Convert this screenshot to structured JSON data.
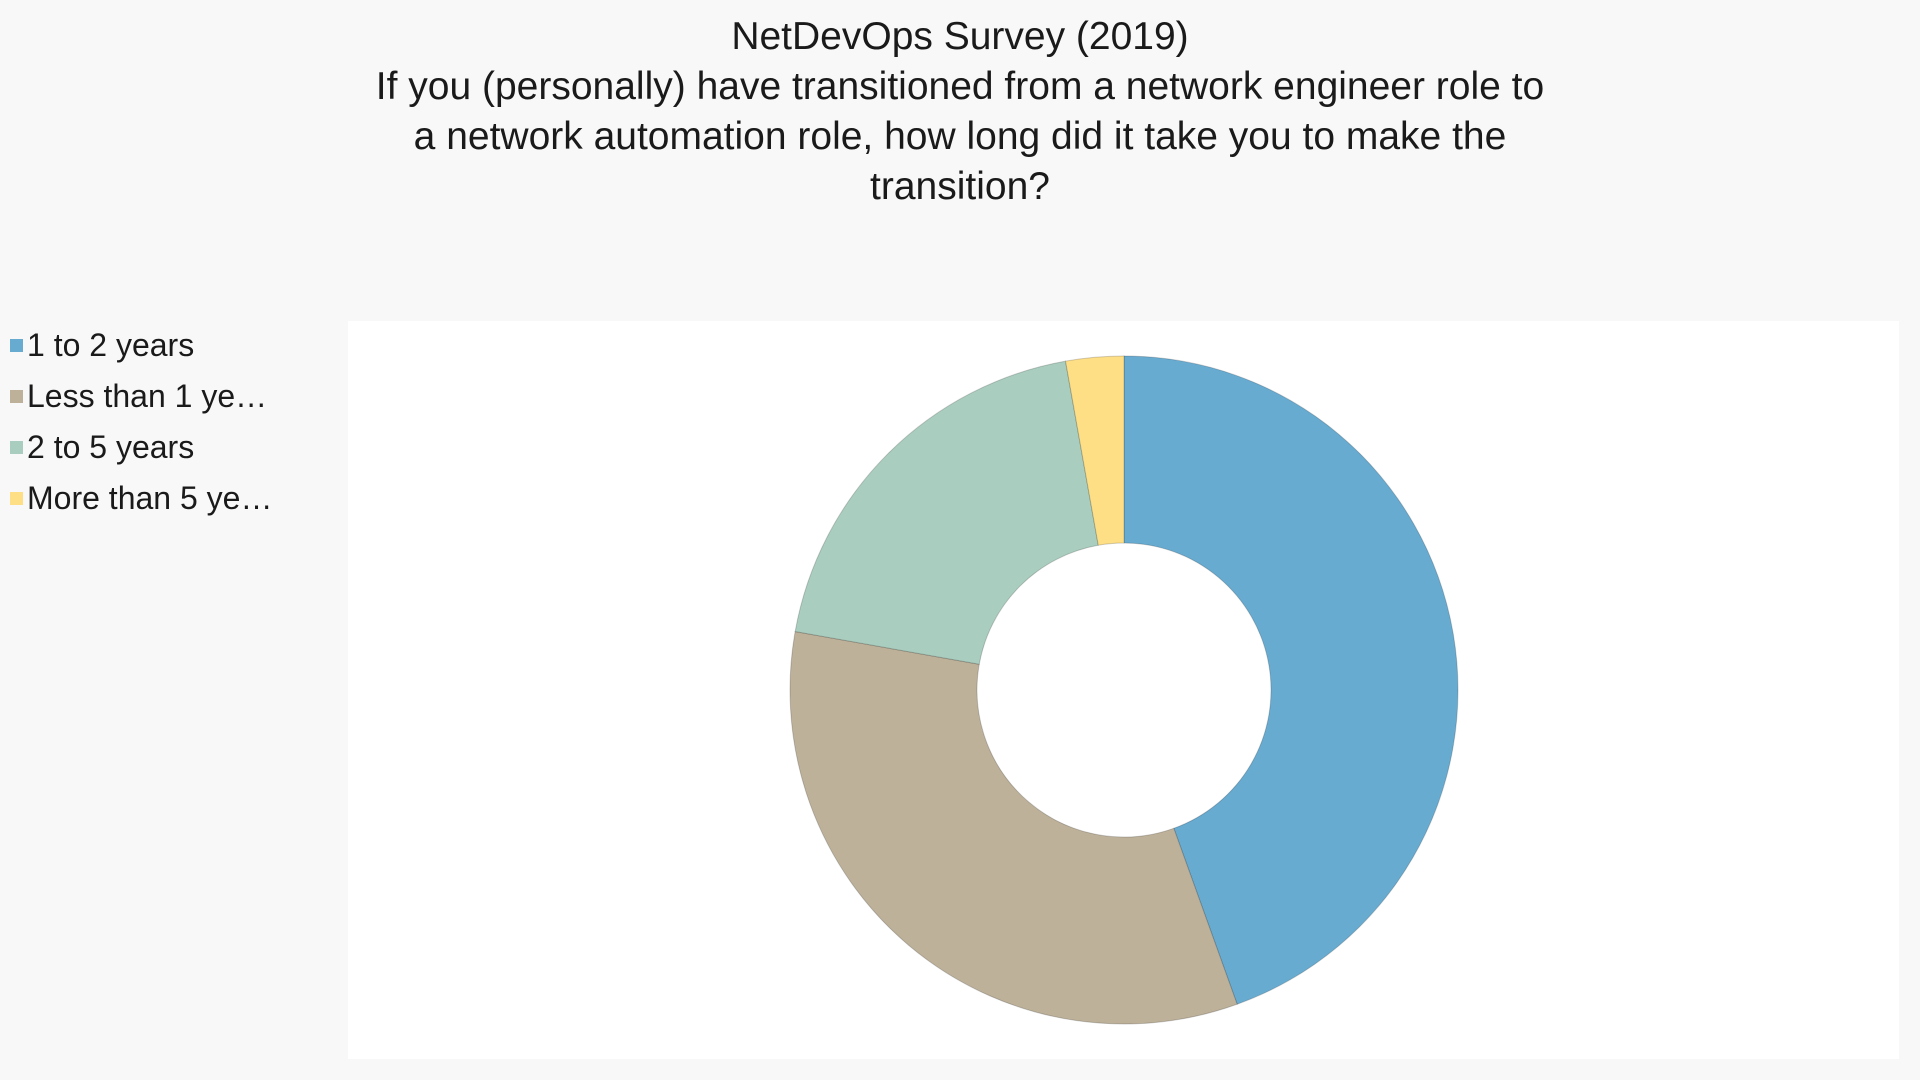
{
  "chart_data": {
    "type": "pie",
    "donut": true,
    "title": "NetDevOps Survey (2019)",
    "subtitle_lines": [
      "If you (personally) have transitioned from a network engineer role to",
      "a network automation role, how long did it take you to make the",
      "transition?"
    ],
    "legend_position": "left",
    "slices": [
      {
        "label": "1 to 2 years",
        "value": 44.5,
        "color": "#67abd1"
      },
      {
        "label": "Less than 1 ye…",
        "value": 33.3,
        "color": "#bdb19a"
      },
      {
        "label": "2 to 5 years",
        "value": 19.4,
        "color": "#a9cdbe"
      },
      {
        "label": "More than 5 ye…",
        "value": 2.8,
        "color": "#fedf86"
      }
    ]
  }
}
